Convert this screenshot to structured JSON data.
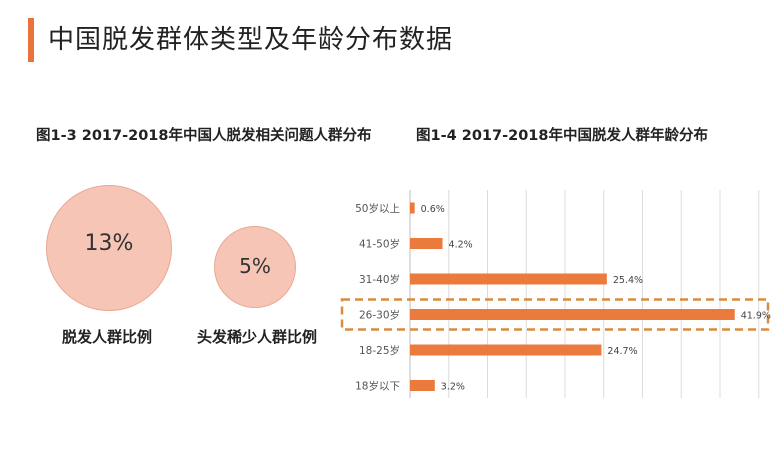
{
  "page": {
    "title": "中国脱发群体类型及年龄分布数据"
  },
  "figure_left": {
    "title": "图1-3 2017-2018年中国人脱发相关问题人群分布",
    "bubbles": [
      {
        "label": "脱发人群比例",
        "value_text": "13%"
      },
      {
        "label": "头发稀少人群比例",
        "value_text": "5%"
      }
    ]
  },
  "figure_right": {
    "title": "图1-4 2017-2018年中国脱发人群年龄分布"
  },
  "colors": {
    "accent": "#e8743b",
    "bar": "#ea7b3c",
    "bubble_fill": "#f6c5b6",
    "highlight_box": "#d98c3f"
  },
  "chart_data": [
    {
      "type": "bubble",
      "title": "图1-3 2017-2018年中国人脱发相关问题人群分布",
      "categories": [
        "脱发人群比例",
        "头发稀少人群比例"
      ],
      "values": [
        13,
        5
      ],
      "value_labels": [
        "13%",
        "5%"
      ],
      "unit": "%"
    },
    {
      "type": "bar",
      "orientation": "horizontal",
      "title": "图1-4 2017-2018年中国脱发人群年龄分布",
      "categories": [
        "50岁以上",
        "41-50岁",
        "31-40岁",
        "26-30岁",
        "18-25岁",
        "18岁以下"
      ],
      "values": [
        0.6,
        4.2,
        25.4,
        41.9,
        24.7,
        3.2
      ],
      "value_labels": [
        "0.6%",
        "4.2%",
        "25.4%",
        "41.9%",
        "24.7%",
        "3.2%"
      ],
      "unit": "%",
      "xlim": [
        0,
        45
      ],
      "grid": true,
      "highlight_category": "26-30岁",
      "legend": "none"
    }
  ]
}
